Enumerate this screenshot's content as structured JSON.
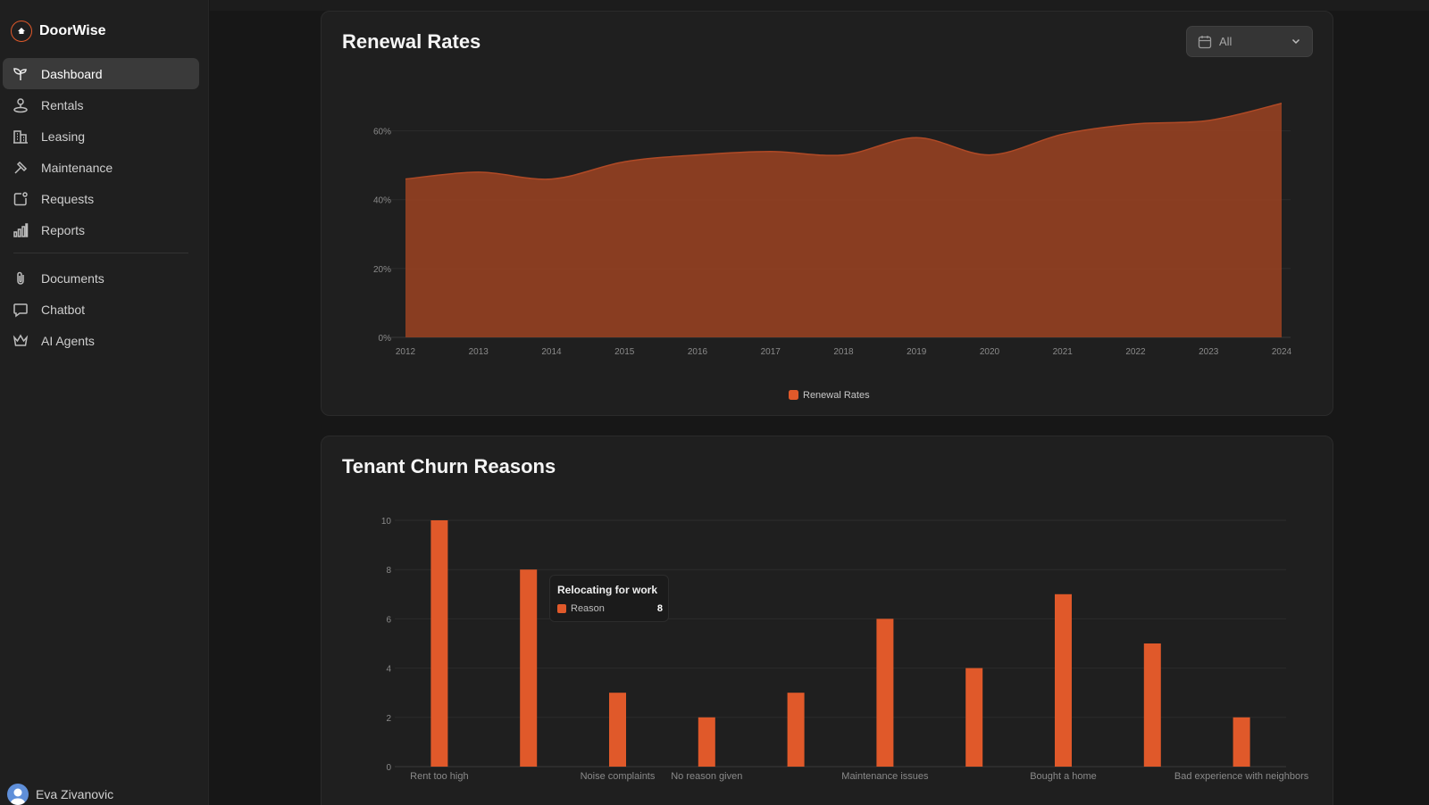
{
  "app": {
    "name": "DoorWise"
  },
  "sidebar": {
    "items": [
      {
        "label": "Dashboard",
        "icon": "sprout-icon",
        "active": true
      },
      {
        "label": "Rentals",
        "icon": "map-pin-icon"
      },
      {
        "label": "Leasing",
        "icon": "building-icon"
      },
      {
        "label": "Maintenance",
        "icon": "hammer-icon"
      },
      {
        "label": "Requests",
        "icon": "notification-icon"
      },
      {
        "label": "Reports",
        "icon": "bar-chart-icon"
      }
    ],
    "secondary": [
      {
        "label": "Documents",
        "icon": "paperclip-icon"
      },
      {
        "label": "Chatbot",
        "icon": "message-icon"
      },
      {
        "label": "AI Agents",
        "icon": "crown-icon"
      }
    ],
    "user": {
      "name": "Eva Zivanovic"
    }
  },
  "renewal": {
    "title": "Renewal Rates",
    "filter": {
      "value": "All"
    }
  },
  "churn": {
    "title": "Tenant Churn Reasons",
    "tooltip": {
      "title": "Relocating for work",
      "series": "Reason",
      "value": "8"
    }
  },
  "colors": {
    "accent": "#e0592a",
    "area_fill": "#8f3f22",
    "background": "#171717",
    "card": "#1f1f1f"
  },
  "chart_data": [
    {
      "type": "area",
      "title": "Renewal Rates",
      "x": [
        "2012",
        "2013",
        "2014",
        "2015",
        "2016",
        "2017",
        "2018",
        "2019",
        "2020",
        "2021",
        "2022",
        "2023",
        "2024"
      ],
      "series": [
        {
          "name": "Renewal Rates",
          "values": [
            46,
            48,
            46,
            51,
            53,
            54,
            53,
            58,
            53,
            59,
            62,
            63,
            68
          ]
        }
      ],
      "ylim": [
        0,
        70
      ],
      "yticks": [
        0,
        20,
        40,
        60
      ],
      "y_format": "percent",
      "grid": true,
      "legend": "bottom-center"
    },
    {
      "type": "bar",
      "title": "Tenant Churn Reasons",
      "categories": [
        "Rent too high",
        "Relocating for work",
        "Noise complaints",
        "No reason given",
        "",
        "Maintenance issues",
        "",
        "Bought a home",
        "",
        "Bad experience with neighbors"
      ],
      "category_labels_shown": [
        "Rent too high",
        "",
        "Noise complaints",
        "No reason given",
        "",
        "Maintenance issues",
        "",
        "Bought a home",
        "",
        "Bad experience with neighbors"
      ],
      "series": [
        {
          "name": "Reason",
          "values": [
            10,
            8,
            3,
            2,
            3,
            6,
            4,
            7,
            5,
            2
          ]
        }
      ],
      "ylim": [
        0,
        10
      ],
      "yticks": [
        0,
        2,
        4,
        6,
        8,
        10
      ],
      "grid": true
    }
  ]
}
